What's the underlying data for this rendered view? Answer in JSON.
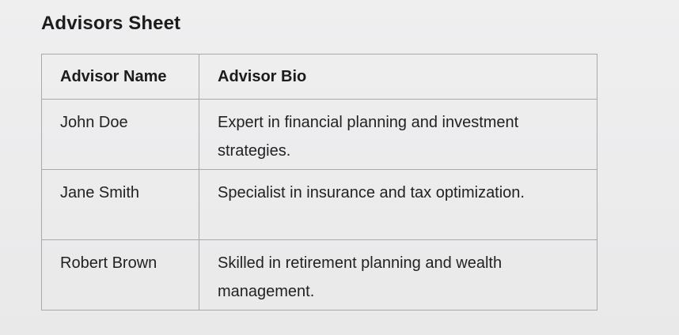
{
  "title": "Advisors Sheet",
  "table": {
    "headers": [
      "Advisor Name",
      "Advisor Bio"
    ],
    "rows": [
      {
        "name": "John Doe",
        "bio": "Expert in financial planning and investment strategies."
      },
      {
        "name": "Jane Smith",
        "bio": "Specialist in insurance and tax optimization."
      },
      {
        "name": "Robert Brown",
        "bio": "Skilled in retirement planning and wealth management."
      }
    ]
  }
}
